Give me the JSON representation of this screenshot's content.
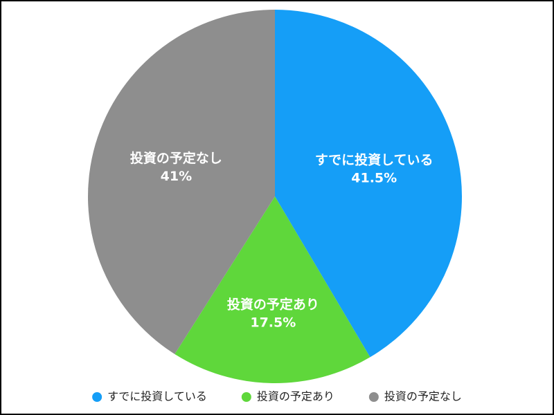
{
  "chart_data": {
    "type": "pie",
    "categories": [
      "すでに投資している",
      "投資の予定あり",
      "投資の予定なし"
    ],
    "values": [
      41.5,
      17.5,
      41
    ],
    "value_labels": [
      "41.5%",
      "17.5%",
      "41%"
    ],
    "colors": [
      "#159ef7",
      "#5fd73b",
      "#8e8e8e"
    ],
    "legend": "bottom"
  }
}
